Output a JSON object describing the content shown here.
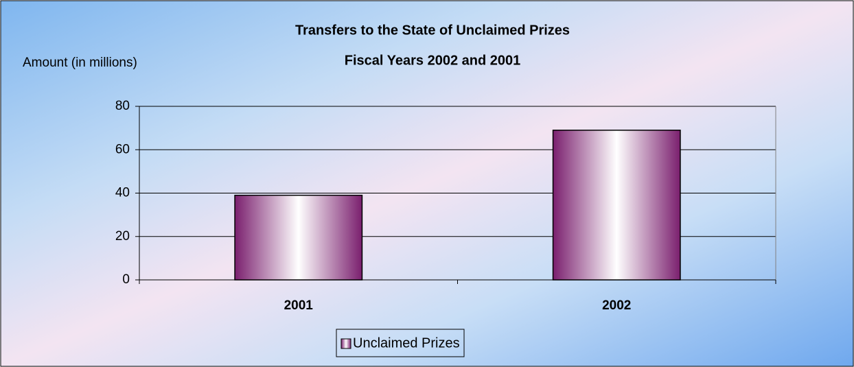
{
  "chart_data": {
    "type": "bar",
    "title": "Transfers to the State of Unclaimed Prizes",
    "subtitle": "Fiscal Years 2002 and 2001",
    "y_label": "Amount (in millions)",
    "categories": [
      "2001",
      "2002"
    ],
    "series": [
      {
        "name": "Unclaimed Prizes",
        "color": "#7a1f6e",
        "values": [
          39,
          69
        ]
      }
    ],
    "ylim": [
      0,
      80
    ],
    "yticks": [
      0,
      20,
      40,
      60,
      80
    ],
    "grid": true,
    "legend": "bottom"
  }
}
